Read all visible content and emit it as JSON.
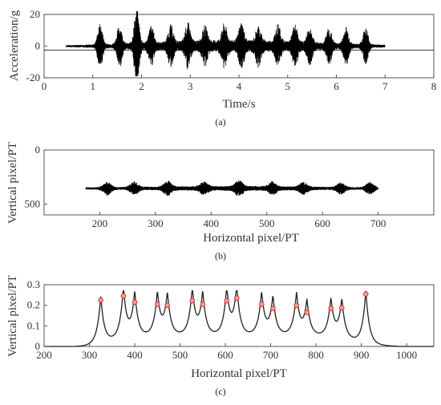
{
  "chart_data": [
    {
      "id": "a",
      "type": "line",
      "panel_label": "(a)",
      "xlabel": "Time/s",
      "ylabel": "Acceleration/g",
      "xlim": [
        0,
        8
      ],
      "ylim": [
        -20,
        20
      ],
      "xticks": [
        0,
        1,
        2,
        3,
        4,
        5,
        6,
        7,
        8
      ],
      "yticks": [
        20,
        0,
        -20
      ],
      "series": [
        {
          "color": "#000000",
          "bursts": [
            {
              "t": 1.15,
              "amp": 13
            },
            {
              "t": 1.55,
              "amp": 12
            },
            {
              "t": 1.9,
              "amp": 22
            },
            {
              "t": 2.2,
              "amp": 11
            },
            {
              "t": 2.6,
              "amp": 11
            },
            {
              "t": 2.95,
              "amp": 12
            },
            {
              "t": 3.3,
              "amp": 10
            },
            {
              "t": 3.7,
              "amp": 11
            },
            {
              "t": 4.05,
              "amp": 12
            },
            {
              "t": 4.4,
              "amp": 10
            },
            {
              "t": 4.8,
              "amp": 11
            },
            {
              "t": 5.15,
              "amp": 11
            },
            {
              "t": 5.45,
              "amp": 10
            },
            {
              "t": 5.85,
              "amp": 10
            },
            {
              "t": 6.2,
              "amp": 11
            },
            {
              "t": 6.6,
              "amp": 11
            }
          ]
        }
      ]
    },
    {
      "id": "b",
      "type": "scatter",
      "panel_label": "(b)",
      "xlabel": "Horizontal pixel/PT",
      "ylabel": "Vertical pixel/PT",
      "xlim": [
        100,
        800
      ],
      "ylim": [
        0,
        600
      ],
      "y_reversed": true,
      "xticks": [
        200,
        300,
        400,
        500,
        600,
        700
      ],
      "yticks": [
        0,
        500
      ],
      "center_y": 355,
      "x_range": [
        175,
        700
      ],
      "series": [
        {
          "color": "#000000",
          "bursts": [
            {
              "x": 213,
              "amp": 55
            },
            {
              "x": 262,
              "amp": 50
            },
            {
              "x": 322,
              "amp": 55
            },
            {
              "x": 387,
              "amp": 45
            },
            {
              "x": 450,
              "amp": 55
            },
            {
              "x": 510,
              "amp": 45
            },
            {
              "x": 566,
              "amp": 45
            },
            {
              "x": 633,
              "amp": 45
            },
            {
              "x": 685,
              "amp": 50
            }
          ]
        }
      ]
    },
    {
      "id": "c",
      "type": "line",
      "panel_label": "(c)",
      "xlabel": "Horizontal pixel/PT",
      "ylabel": "Vertical pixel/PT",
      "xlim": [
        200,
        1060
      ],
      "ylim": [
        0,
        0.3
      ],
      "xticks": [
        200,
        300,
        400,
        500,
        600,
        700,
        800,
        900,
        1000
      ],
      "yticks": [
        0,
        0.1,
        0.2,
        0.3
      ],
      "peaks": [
        {
          "x": 325,
          "y": 0.225
        },
        {
          "x": 375,
          "y": 0.245
        },
        {
          "x": 400,
          "y": 0.215
        },
        {
          "x": 450,
          "y": 0.205
        },
        {
          "x": 472,
          "y": 0.2
        },
        {
          "x": 527,
          "y": 0.222
        },
        {
          "x": 550,
          "y": 0.205
        },
        {
          "x": 603,
          "y": 0.222
        },
        {
          "x": 625,
          "y": 0.235
        },
        {
          "x": 680,
          "y": 0.205
        },
        {
          "x": 705,
          "y": 0.185
        },
        {
          "x": 757,
          "y": 0.2
        },
        {
          "x": 780,
          "y": 0.165
        },
        {
          "x": 833,
          "y": 0.185
        },
        {
          "x": 857,
          "y": 0.188
        },
        {
          "x": 910,
          "y": 0.255
        }
      ],
      "series": [
        {
          "color": "#222222",
          "marker_color": "#e03030"
        }
      ]
    }
  ]
}
